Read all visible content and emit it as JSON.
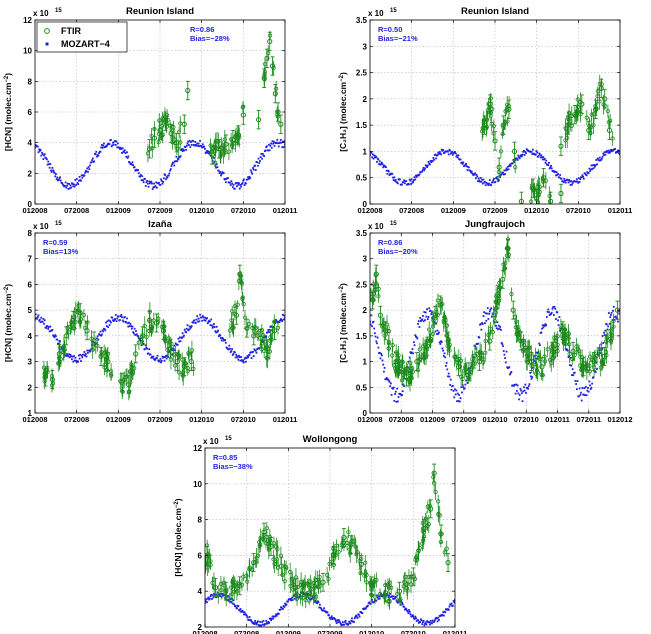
{
  "colors": {
    "ftir": "#1a8a1a",
    "model": "#1f1fe6",
    "stats_text": "#1f1fe6"
  },
  "legend": {
    "ftir": "FTIR",
    "model": "MOZART−4"
  },
  "chart_data": [
    {
      "type": "scatter",
      "title": "Reunion Island",
      "ylabel_main": "[HCN] (molec.cm",
      "ylabel_sup": "−2",
      "ylabel_close": ")",
      "exponent_base": "x 10",
      "exponent_power": "15",
      "ylim": [
        0,
        12
      ],
      "yticks": [
        0,
        2,
        4,
        6,
        8,
        10,
        12
      ],
      "xlim": [
        0,
        36
      ],
      "xticks": [
        0,
        6,
        12,
        18,
        24,
        30,
        36
      ],
      "xticklabels": [
        "012008",
        "072008",
        "012009",
        "072009",
        "012010",
        "072010",
        "012011"
      ],
      "grid": true,
      "legend_position": "top-left",
      "stats": {
        "r": "R=0.86",
        "bias": "Bias=−28%"
      },
      "model_base": 2.6,
      "model_amp": 1.4,
      "model_phase": 0.0,
      "ftir_seed": 7,
      "ftir_ranges": [
        [
          16,
          21
        ],
        [
          25,
          30
        ],
        [
          33,
          35
        ]
      ],
      "ftir_points": [
        {
          "x": 16.5,
          "y": 3.6
        },
        {
          "x": 17.2,
          "y": 4.3
        },
        {
          "x": 18.0,
          "y": 4.8
        },
        {
          "x": 18.8,
          "y": 5.4
        },
        {
          "x": 19.6,
          "y": 4.6
        },
        {
          "x": 20.4,
          "y": 4.0
        },
        {
          "x": 21.5,
          "y": 5.2
        },
        {
          "x": 22.0,
          "y": 7.4
        },
        {
          "x": 25.5,
          "y": 3.2
        },
        {
          "x": 26.5,
          "y": 3.6
        },
        {
          "x": 27.5,
          "y": 3.9
        },
        {
          "x": 28.5,
          "y": 4.2
        },
        {
          "x": 29.3,
          "y": 4.5
        },
        {
          "x": 30.0,
          "y": 5.8
        },
        {
          "x": 32.2,
          "y": 5.5
        },
        {
          "x": 33.0,
          "y": 8.2
        },
        {
          "x": 33.4,
          "y": 9.5
        },
        {
          "x": 33.8,
          "y": 10.6
        },
        {
          "x": 34.2,
          "y": 9.0
        },
        {
          "x": 34.6,
          "y": 7.2
        },
        {
          "x": 35.0,
          "y": 6.0
        },
        {
          "x": 35.4,
          "y": 5.2
        }
      ]
    },
    {
      "type": "scatter",
      "title": "Reunion Island",
      "ylabel_main": "[C₂H₂] (molec.cm",
      "ylabel_sup": "−2",
      "ylabel_close": ")",
      "exponent_base": "x 10",
      "exponent_power": "15",
      "ylim": [
        0,
        3.5
      ],
      "yticks": [
        0,
        0.5,
        1,
        1.5,
        2,
        2.5,
        3,
        3.5
      ],
      "xlim": [
        0,
        36
      ],
      "xticks": [
        0,
        6,
        12,
        18,
        24,
        30,
        36
      ],
      "xticklabels": [
        "012008",
        "072008",
        "012009",
        "072009",
        "012010",
        "072010",
        "012011"
      ],
      "grid": true,
      "legend_position": "",
      "stats": {
        "r": "R=0.50",
        "bias": "Bias=−21%"
      },
      "model_base": 0.7,
      "model_amp": 0.3,
      "model_phase": 0.0,
      "ftir_seed": 11,
      "ftir_ranges": [
        [
          16,
          21
        ],
        [
          23,
          26
        ],
        [
          28,
          35
        ]
      ],
      "ftir_points": [
        {
          "x": 16.5,
          "y": 1.5
        },
        {
          "x": 17.3,
          "y": 1.9
        },
        {
          "x": 18.0,
          "y": 1.2
        },
        {
          "x": 18.6,
          "y": 0.7
        },
        {
          "x": 19.2,
          "y": 1.5
        },
        {
          "x": 20.0,
          "y": 1.8
        },
        {
          "x": 20.8,
          "y": 1.0
        },
        {
          "x": 23.5,
          "y": 0.3
        },
        {
          "x": 24.0,
          "y": 0.1
        },
        {
          "x": 25.0,
          "y": 0.5
        },
        {
          "x": 27.5,
          "y": 0.2
        },
        {
          "x": 28.5,
          "y": 1.5
        },
        {
          "x": 29.5,
          "y": 1.7
        },
        {
          "x": 30.5,
          "y": 1.9
        },
        {
          "x": 31.5,
          "y": 1.4
        },
        {
          "x": 32.5,
          "y": 1.8
        },
        {
          "x": 33.3,
          "y": 2.2
        },
        {
          "x": 33.8,
          "y": 2.0
        },
        {
          "x": 34.5,
          "y": 1.4
        },
        {
          "x": 21.8,
          "y": 0.05
        },
        {
          "x": 26.0,
          "y": 0.05
        },
        {
          "x": 27.5,
          "y": 1.1
        }
      ]
    },
    {
      "type": "scatter",
      "title": "Izaña",
      "ylabel_main": "[HCN] (molec.cm",
      "ylabel_sup": "−2",
      "ylabel_close": ")",
      "exponent_base": "x 10",
      "exponent_power": "15",
      "ylim": [
        1,
        8
      ],
      "yticks": [
        1,
        2,
        3,
        4,
        5,
        6,
        7,
        8
      ],
      "xlim": [
        0,
        36
      ],
      "xticks": [
        0,
        6,
        12,
        18,
        24,
        30,
        36
      ],
      "xticklabels": [
        "012008",
        "072008",
        "012009",
        "072009",
        "012010",
        "072010",
        "012011"
      ],
      "grid": true,
      "legend_position": "",
      "stats": {
        "r": "R=0.59",
        "bias": "Bias=13%"
      },
      "model_base": 3.9,
      "model_amp": 0.8,
      "model_phase": 1.0,
      "ftir_seed": 23,
      "ftir_ranges": [
        [
          1,
          11
        ],
        [
          12,
          23
        ],
        [
          28,
          35
        ]
      ],
      "ftir_points": [
        {
          "x": 1.5,
          "y": 2.4
        },
        {
          "x": 2.5,
          "y": 2.3
        },
        {
          "x": 3.5,
          "y": 3.3
        },
        {
          "x": 4.5,
          "y": 4.0
        },
        {
          "x": 5.5,
          "y": 4.6
        },
        {
          "x": 6.5,
          "y": 4.9
        },
        {
          "x": 7.5,
          "y": 4.2
        },
        {
          "x": 8.5,
          "y": 3.8
        },
        {
          "x": 9.5,
          "y": 3.2
        },
        {
          "x": 10.5,
          "y": 3.0
        },
        {
          "x": 12.5,
          "y": 2.2
        },
        {
          "x": 13.5,
          "y": 2.1
        },
        {
          "x": 14.5,
          "y": 3.3
        },
        {
          "x": 15.5,
          "y": 4.0
        },
        {
          "x": 16.5,
          "y": 4.6
        },
        {
          "x": 17.5,
          "y": 4.5
        },
        {
          "x": 18.5,
          "y": 4.2
        },
        {
          "x": 19.5,
          "y": 3.5
        },
        {
          "x": 20.5,
          "y": 3.0
        },
        {
          "x": 21.5,
          "y": 2.8
        },
        {
          "x": 22.5,
          "y": 3.0
        },
        {
          "x": 29.0,
          "y": 4.8
        },
        {
          "x": 29.5,
          "y": 6.4
        },
        {
          "x": 30.5,
          "y": 4.3
        },
        {
          "x": 31.5,
          "y": 4.0
        },
        {
          "x": 32.5,
          "y": 3.9
        },
        {
          "x": 33.5,
          "y": 3.5
        },
        {
          "x": 34.5,
          "y": 4.2
        }
      ]
    },
    {
      "type": "scatter",
      "title": "Jungfraujoch",
      "ylabel_main": "[C₂H₂] (molec.cm",
      "ylabel_sup": "−2",
      "ylabel_close": ")",
      "exponent_base": "x 10",
      "exponent_power": "15",
      "ylim": [
        0,
        3.5
      ],
      "yticks": [
        0,
        0.5,
        1,
        1.5,
        2,
        2.5,
        3,
        3.5
      ],
      "xlim": [
        0,
        48
      ],
      "xticks": [
        0,
        6,
        12,
        18,
        24,
        30,
        36,
        42,
        48
      ],
      "xticklabels": [
        "012008",
        "072008",
        "012009",
        "072009",
        "012010",
        "072010",
        "012011",
        "072011",
        "012012"
      ],
      "grid": true,
      "legend_position": "",
      "stats": {
        "r": "R=0.86",
        "bias": "Bias=−20%"
      },
      "model_base": 1.15,
      "model_amp": 0.8,
      "model_phase": 0.0,
      "ftir_seed": 31,
      "ftir_ranges": [
        [
          0,
          47
        ]
      ],
      "ftir_points": [
        {
          "x": 0.5,
          "y": 2.2
        },
        {
          "x": 1.2,
          "y": 2.7
        },
        {
          "x": 2.0,
          "y": 1.9
        },
        {
          "x": 3.0,
          "y": 1.6
        },
        {
          "x": 5.0,
          "y": 1.0
        },
        {
          "x": 7.0,
          "y": 0.7
        },
        {
          "x": 9.0,
          "y": 1.0
        },
        {
          "x": 11.0,
          "y": 1.3
        },
        {
          "x": 12.5,
          "y": 1.9
        },
        {
          "x": 13.5,
          "y": 2.1
        },
        {
          "x": 15.0,
          "y": 1.4
        },
        {
          "x": 17.0,
          "y": 0.9
        },
        {
          "x": 19.0,
          "y": 0.8
        },
        {
          "x": 21.0,
          "y": 1.0
        },
        {
          "x": 23.0,
          "y": 1.4
        },
        {
          "x": 24.5,
          "y": 2.3
        },
        {
          "x": 25.5,
          "y": 2.6
        },
        {
          "x": 26.5,
          "y": 3.2
        },
        {
          "x": 27.5,
          "y": 2.0
        },
        {
          "x": 29.0,
          "y": 1.4
        },
        {
          "x": 31.0,
          "y": 1.0
        },
        {
          "x": 33.0,
          "y": 0.9
        },
        {
          "x": 35.0,
          "y": 1.2
        },
        {
          "x": 37.0,
          "y": 1.6
        },
        {
          "x": 39.0,
          "y": 1.2
        },
        {
          "x": 41.0,
          "y": 0.9
        },
        {
          "x": 43.0,
          "y": 1.0
        },
        {
          "x": 45.0,
          "y": 1.1
        },
        {
          "x": 47.5,
          "y": 2.0
        }
      ]
    },
    {
      "type": "scatter",
      "title": "Wollongong",
      "ylabel_main": "[HCN] (molec.cm",
      "ylabel_sup": "−2",
      "ylabel_close": ")",
      "exponent_base": "x 10",
      "exponent_power": "15",
      "ylim": [
        2,
        12
      ],
      "yticks": [
        2,
        4,
        6,
        8,
        10,
        12
      ],
      "xlim": [
        0,
        36
      ],
      "xticks": [
        0,
        6,
        12,
        18,
        24,
        30,
        36
      ],
      "xticklabels": [
        "012008",
        "072008",
        "012009",
        "072009",
        "012010",
        "072010",
        "012011"
      ],
      "grid": true,
      "legend_position": "",
      "stats": {
        "r": "R=0.85",
        "bias": "Bias=−38%"
      },
      "model_base": 3.0,
      "model_amp": 0.8,
      "model_phase": 3.0,
      "ftir_seed": 47,
      "ftir_ranges": [
        [
          0,
          35
        ]
      ],
      "ftir_points": [
        {
          "x": 0.3,
          "y": 6.0
        },
        {
          "x": 1.5,
          "y": 4.2
        },
        {
          "x": 3.0,
          "y": 4.0
        },
        {
          "x": 5.0,
          "y": 4.3
        },
        {
          "x": 7.0,
          "y": 5.6
        },
        {
          "x": 8.5,
          "y": 7.3
        },
        {
          "x": 9.5,
          "y": 6.5
        },
        {
          "x": 11.0,
          "y": 5.4
        },
        {
          "x": 13.0,
          "y": 4.2
        },
        {
          "x": 15.0,
          "y": 3.9
        },
        {
          "x": 17.0,
          "y": 4.5
        },
        {
          "x": 18.5,
          "y": 6.0
        },
        {
          "x": 20.0,
          "y": 7.0
        },
        {
          "x": 21.0,
          "y": 6.6
        },
        {
          "x": 22.5,
          "y": 5.5
        },
        {
          "x": 24.0,
          "y": 4.3
        },
        {
          "x": 26.0,
          "y": 3.9
        },
        {
          "x": 28.0,
          "y": 4.0
        },
        {
          "x": 30.0,
          "y": 4.8
        },
        {
          "x": 31.5,
          "y": 7.5
        },
        {
          "x": 32.5,
          "y": 8.6
        },
        {
          "x": 33.0,
          "y": 10.6
        },
        {
          "x": 34.0,
          "y": 7.2
        },
        {
          "x": 35.0,
          "y": 5.6
        }
      ]
    }
  ]
}
